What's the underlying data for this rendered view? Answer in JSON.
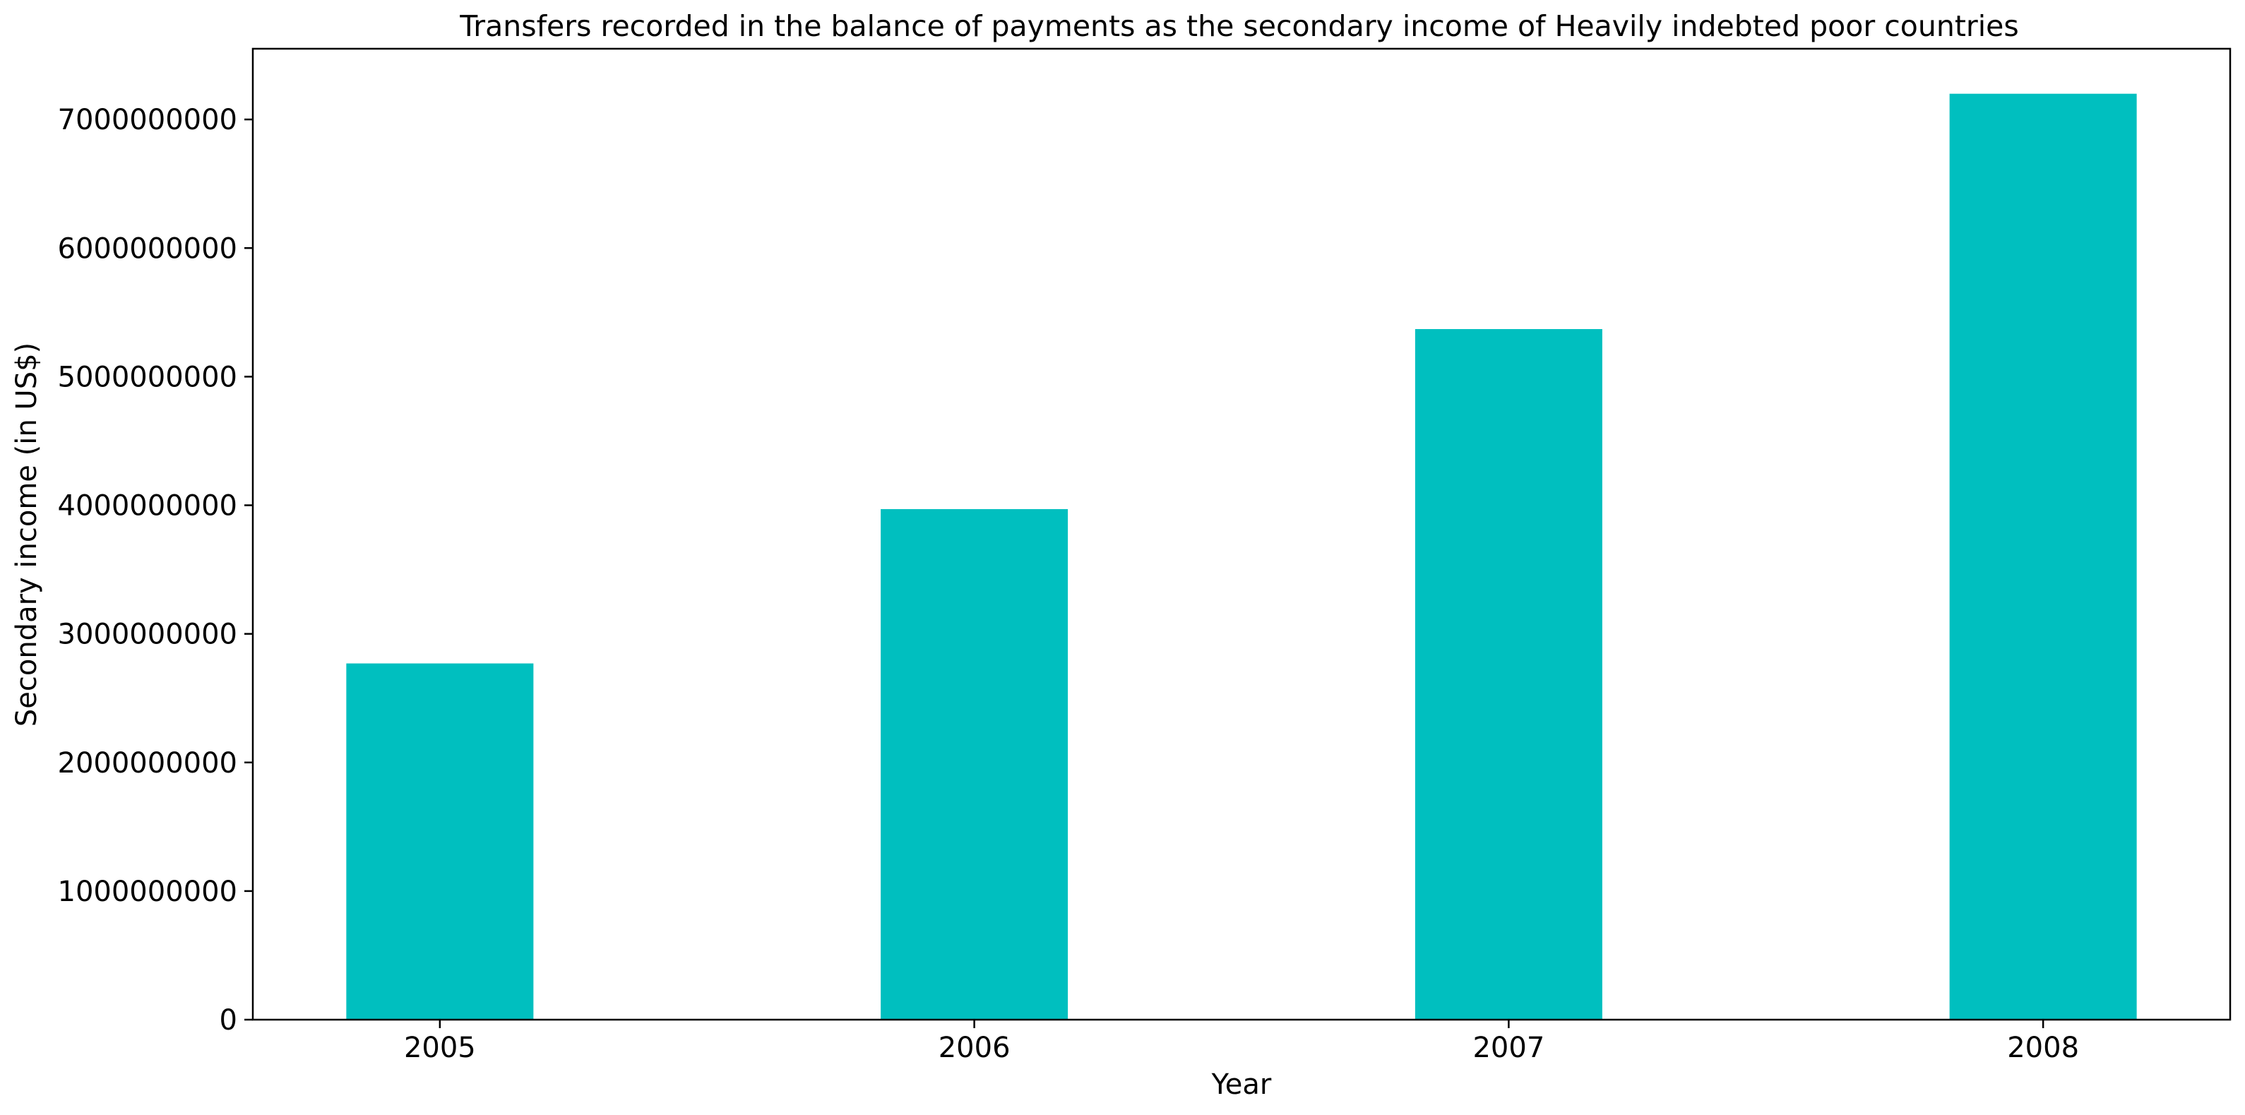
{
  "chart_data": {
    "type": "bar",
    "title": "Transfers recorded in the balance of payments as the secondary income of Heavily indebted poor countries",
    "xlabel": "Year",
    "ylabel": "Secondary income (in US$)",
    "categories": [
      "2005",
      "2006",
      "2007",
      "2008"
    ],
    "series": [
      {
        "values": [
          2770000000,
          3970000000,
          5370000000,
          7200000000
        ]
      }
    ],
    "ylim": [
      0,
      7550000000
    ],
    "yticks": [
      0,
      1000000000,
      2000000000,
      3000000000,
      4000000000,
      5000000000,
      6000000000,
      7000000000
    ],
    "ytick_labels": [
      "0",
      "1000000000",
      "2000000000",
      "3000000000",
      "4000000000",
      "5000000000",
      "6000000000",
      "7000000000"
    ],
    "bar_color": "#00bfbf",
    "grid": false,
    "legend": "none"
  }
}
